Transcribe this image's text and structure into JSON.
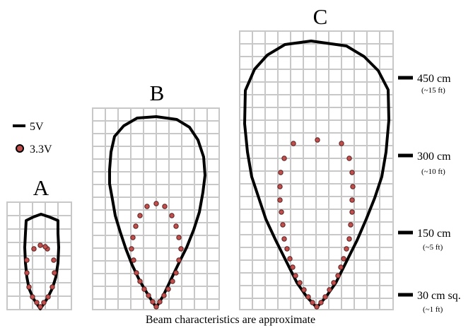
{
  "legend": {
    "items": [
      {
        "label": "5V",
        "marker": "line",
        "color": "#000000"
      },
      {
        "label": "3.3V",
        "marker": "dot",
        "color": "#c0504d"
      }
    ]
  },
  "panels": [
    {
      "label": "A"
    },
    {
      "label": "B"
    },
    {
      "label": "C"
    }
  ],
  "distance_labels": [
    {
      "main": "450 cm",
      "sub": "(~15 ft)"
    },
    {
      "main": "300 cm",
      "sub": "(~10 ft)"
    },
    {
      "main": "150 cm",
      "sub": "(~5 ft)"
    },
    {
      "main": "30 cm sq.",
      "sub": "(~1 ft)"
    }
  ],
  "footer": {
    "note": "Beam characteristics are approximate"
  },
  "colors": {
    "grid": "#c8c8c8",
    "beam_5v": "#000000",
    "dot_fill": "#c0504d",
    "dot_stroke": "#5a1f1e"
  }
}
